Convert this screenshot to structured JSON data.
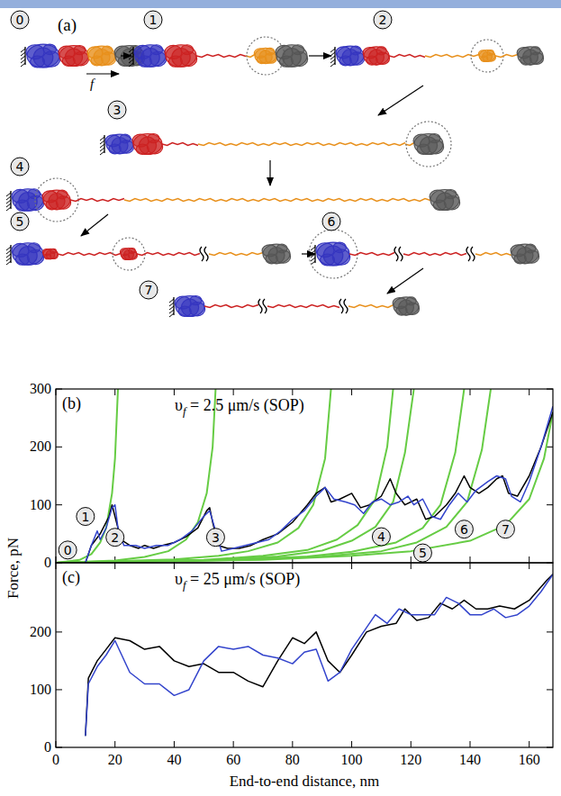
{
  "diagram": {
    "label": "(a)",
    "force_label": "f",
    "states": [
      "0",
      "1",
      "2",
      "3",
      "4",
      "5",
      "6",
      "7"
    ]
  },
  "chart_data": [
    {
      "type": "line",
      "panel_label": "(b)",
      "title": "υf = 2.5 μm/s (SOP)",
      "y_label": "Force, pN",
      "xlim": [
        0,
        168
      ],
      "xticks": [
        0,
        20,
        40,
        60,
        80,
        100,
        120,
        140,
        160
      ],
      "ylim": [
        0,
        300
      ],
      "yticks": [
        0,
        100,
        200,
        300
      ],
      "tick_labels": "y",
      "series": [
        {
          "color": "#66cc44",
          "x": [
            0,
            8,
            12,
            15,
            17,
            19,
            20,
            21
          ],
          "values": [
            0,
            5,
            15,
            35,
            60,
            120,
            180,
            300
          ]
        },
        {
          "color": "#66cc44",
          "x": [
            0,
            20,
            30,
            38,
            44,
            48,
            51,
            53,
            54
          ],
          "values": [
            0,
            4,
            10,
            20,
            40,
            70,
            120,
            200,
            300
          ]
        },
        {
          "color": "#66cc44",
          "x": [
            0,
            40,
            55,
            65,
            75,
            82,
            87,
            91,
            93
          ],
          "values": [
            0,
            6,
            12,
            20,
            35,
            60,
            100,
            180,
            300
          ]
        },
        {
          "color": "#66cc44",
          "x": [
            0,
            50,
            70,
            85,
            95,
            102,
            108,
            112,
            114
          ],
          "values": [
            0,
            5,
            12,
            22,
            40,
            65,
            110,
            200,
            300
          ]
        },
        {
          "color": "#66cc44",
          "x": [
            0,
            55,
            75,
            90,
            100,
            108,
            114,
            118,
            121
          ],
          "values": [
            0,
            5,
            11,
            21,
            38,
            62,
            105,
            190,
            300
          ]
        },
        {
          "color": "#66cc44",
          "x": [
            0,
            60,
            85,
            100,
            115,
            124,
            130,
            135,
            138
          ],
          "values": [
            0,
            5,
            11,
            19,
            35,
            60,
            100,
            190,
            300
          ]
        },
        {
          "color": "#66cc44",
          "x": [
            0,
            65,
            90,
            110,
            122,
            132,
            139,
            144,
            147
          ],
          "values": [
            0,
            5,
            11,
            20,
            35,
            62,
            105,
            195,
            300
          ]
        },
        {
          "color": "#66cc44",
          "x": [
            0,
            70,
            100,
            120,
            140,
            152,
            160,
            165,
            168
          ],
          "values": [
            0,
            5,
            12,
            20,
            38,
            65,
            110,
            180,
            260
          ]
        },
        {
          "color": "#000000",
          "x": [
            10,
            12,
            15,
            18,
            19,
            20,
            22,
            25,
            28,
            30,
            33,
            36,
            40,
            44,
            48,
            51,
            52,
            53,
            55,
            58,
            62,
            66,
            70,
            75,
            80,
            85,
            88,
            91,
            93,
            96,
            100,
            103,
            106,
            110,
            113,
            115,
            118,
            122,
            125,
            128,
            132,
            135,
            138,
            140,
            143,
            146,
            149,
            151,
            153,
            156,
            160,
            164,
            168
          ],
          "values": [
            0,
            30,
            50,
            80,
            100,
            80,
            40,
            30,
            25,
            30,
            25,
            30,
            35,
            45,
            60,
            90,
            95,
            70,
            30,
            25,
            25,
            30,
            40,
            50,
            70,
            100,
            120,
            130,
            105,
            110,
            120,
            95,
            100,
            115,
            145,
            120,
            100,
            110,
            75,
            80,
            100,
            120,
            150,
            130,
            120,
            130,
            145,
            150,
            120,
            115,
            150,
            200,
            260
          ]
        },
        {
          "color": "#3344cc",
          "x": [
            10,
            12,
            14,
            15,
            17,
            19,
            20,
            21,
            23,
            27,
            30,
            34,
            38,
            42,
            46,
            50,
            52,
            54,
            56,
            60,
            64,
            68,
            72,
            76,
            80,
            84,
            88,
            91,
            94,
            98,
            101,
            104,
            107,
            110,
            113,
            116,
            119,
            121,
            124,
            127,
            130,
            133,
            136,
            139,
            142,
            146,
            149,
            152,
            154,
            157,
            160,
            164,
            168
          ],
          "values": [
            0,
            30,
            55,
            40,
            60,
            95,
            100,
            60,
            30,
            30,
            25,
            30,
            30,
            40,
            55,
            80,
            90,
            55,
            20,
            25,
            30,
            35,
            40,
            55,
            75,
            90,
            115,
            130,
            110,
            105,
            100,
            85,
            105,
            110,
            100,
            105,
            115,
            100,
            110,
            80,
            75,
            100,
            120,
            105,
            125,
            140,
            150,
            145,
            115,
            105,
            140,
            200,
            270
          ]
        }
      ],
      "annotations": [
        {
          "text": "0",
          "x": 4,
          "y": 22
        },
        {
          "text": "1",
          "x": 10,
          "y": 80
        },
        {
          "text": "2",
          "x": 20,
          "y": 44
        },
        {
          "text": "3",
          "x": 54,
          "y": 44
        },
        {
          "text": "4",
          "x": 110,
          "y": 45
        },
        {
          "text": "5",
          "x": 124,
          "y": 17
        },
        {
          "text": "6",
          "x": 138,
          "y": 58
        },
        {
          "text": "7",
          "x": 152,
          "y": 58
        }
      ]
    },
    {
      "type": "line",
      "panel_label": "(c)",
      "title": "υf = 25 μm/s (SOP)",
      "x_label": "End-to-end distance, nm",
      "xlim": [
        0,
        168
      ],
      "xticks": [
        0,
        20,
        40,
        60,
        80,
        100,
        120,
        140,
        160
      ],
      "ylim": [
        0,
        320
      ],
      "yticks": [
        0,
        100,
        200
      ],
      "series": [
        {
          "color": "#000000",
          "x": [
            10,
            11,
            14,
            17,
            20,
            25,
            30,
            35,
            40,
            45,
            50,
            55,
            60,
            65,
            70,
            75,
            80,
            84,
            88,
            92,
            96,
            100,
            105,
            110,
            115,
            118,
            122,
            126,
            130,
            134,
            138,
            142,
            146,
            150,
            155,
            160,
            166,
            168
          ],
          "values": [
            20,
            120,
            150,
            170,
            190,
            185,
            170,
            175,
            150,
            140,
            145,
            130,
            130,
            115,
            105,
            150,
            190,
            180,
            200,
            150,
            130,
            160,
            200,
            210,
            215,
            240,
            220,
            225,
            250,
            240,
            255,
            240,
            240,
            245,
            240,
            255,
            290,
            300
          ]
        },
        {
          "color": "#3344cc",
          "x": [
            10,
            11,
            14,
            17,
            20,
            25,
            30,
            35,
            40,
            45,
            50,
            55,
            60,
            65,
            70,
            75,
            80,
            84,
            88,
            92,
            96,
            100,
            104,
            108,
            112,
            116,
            120,
            124,
            128,
            132,
            136,
            140,
            144,
            148,
            152,
            156,
            160,
            164,
            168
          ],
          "values": [
            20,
            110,
            140,
            160,
            185,
            130,
            110,
            110,
            90,
            100,
            150,
            175,
            170,
            175,
            160,
            155,
            145,
            165,
            170,
            115,
            130,
            170,
            200,
            230,
            215,
            240,
            230,
            230,
            230,
            260,
            250,
            230,
            230,
            240,
            225,
            230,
            245,
            270,
            300
          ]
        }
      ]
    }
  ]
}
